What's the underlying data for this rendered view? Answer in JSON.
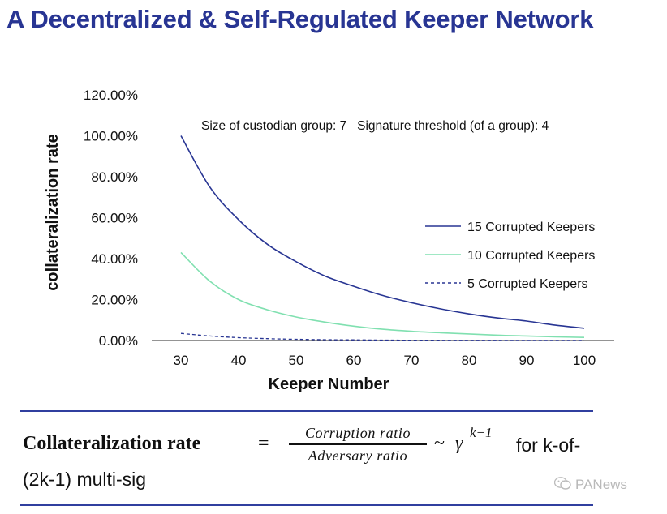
{
  "title": "A Decentralized & Self-Regulated Keeper Network",
  "chart_data": {
    "type": "line",
    "xlabel": "Keeper Number",
    "ylabel": "collateralization rate",
    "x_ticks": [
      30,
      40,
      50,
      60,
      70,
      80,
      90,
      100
    ],
    "y_ticks": [
      "0.00%",
      "20.00%",
      "40.00%",
      "60.00%",
      "80.00%",
      "100.00%",
      "120.00%"
    ],
    "xlim": [
      25,
      105
    ],
    "ylim": [
      0,
      120
    ],
    "grid": false,
    "legend_position": "right",
    "annotation": "Size of custodian group: 7   Signature threshold (of a group): 4",
    "x": [
      30,
      35,
      40,
      45,
      50,
      55,
      60,
      65,
      70,
      75,
      80,
      85,
      90,
      95,
      100
    ],
    "series": [
      {
        "name": "15 Corrupted Keepers",
        "color": "#283593",
        "dash": "solid",
        "values": [
          100,
          75,
          59,
          47,
          38.5,
          31.5,
          26.5,
          22,
          18.5,
          15.5,
          13,
          11,
          9.5,
          7.5,
          6
        ]
      },
      {
        "name": "10 Corrupted Keepers",
        "color": "#80e0b0",
        "dash": "solid",
        "values": [
          43,
          29,
          20,
          15,
          11.5,
          9,
          7,
          5.5,
          4.5,
          3.8,
          3.2,
          2.6,
          2.2,
          1.8,
          1.5
        ]
      },
      {
        "name": "5 Corrupted Keepers",
        "color": "#283593",
        "dash": "dashed",
        "values": [
          3.5,
          2.2,
          1.4,
          0.9,
          0.6,
          0.4,
          0.3,
          0.2,
          0.15,
          0.1,
          0.08,
          0.06,
          0.05,
          0.04,
          0.03
        ]
      }
    ]
  },
  "formula": {
    "lhs": "Collateralization rate",
    "equals": "=",
    "numerator": "Corruption ratio",
    "denominator": "Adversary ratio",
    "tilde": "~",
    "gamma": "γ",
    "exponent": "k−1",
    "tail": "for k-of-",
    "line2": "(2k-1) multi-sig"
  },
  "watermark": "PANews",
  "colors": {
    "title": "#283593",
    "divider": "#303f9f",
    "watermark": "#b9b9b9"
  }
}
